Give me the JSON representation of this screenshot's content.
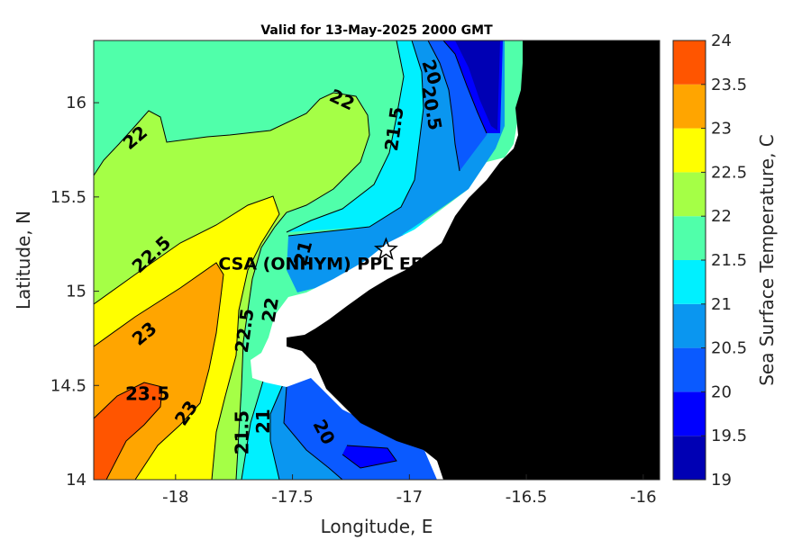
{
  "chart_data": {
    "type": "heatmap",
    "title": "Valid for 13-May-2025 2000 GMT",
    "xlabel": "Longitude, E",
    "ylabel": "Latitude, N",
    "xlim": [
      -18.35,
      -15.93
    ],
    "ylim": [
      14.0,
      16.33
    ],
    "x_ticks": [
      -18,
      -17.5,
      -17,
      -16.5,
      -16
    ],
    "x_tick_labels": [
      "-18",
      "-17.5",
      "-17",
      "-16.5",
      "-16"
    ],
    "y_ticks": [
      14,
      14.5,
      15,
      15.5,
      16
    ],
    "y_tick_labels": [
      "14",
      "14.5",
      "15",
      "15.5",
      "16"
    ],
    "colorbar": {
      "label": "Sea Surface Temperature, C",
      "levels": [
        19,
        19.5,
        20,
        20.5,
        21,
        21.5,
        22,
        22.5,
        23,
        23.5,
        24
      ],
      "tick_labels": [
        "19",
        "19.5",
        "20",
        "20.5",
        "21",
        "21.5",
        "22",
        "22.5",
        "23",
        "23.5",
        "24"
      ],
      "colors": [
        "#0000b4",
        "#0000ff",
        "#0a5aff",
        "#0a96f0",
        "#00f0ff",
        "#50ffaa",
        "#a5ff46",
        "#ffff00",
        "#ffa500",
        "#ff5500"
      ]
    },
    "contour_labels": [
      {
        "text": "22",
        "lon": -18.17,
        "lat": 15.81,
        "angle": -40
      },
      {
        "text": "22",
        "lon": -17.29,
        "lat": 16.01,
        "angle": 25
      },
      {
        "text": "21.5",
        "lon": -17.06,
        "lat": 15.86,
        "angle": -82
      },
      {
        "text": "20.5",
        "lon": -16.91,
        "lat": 15.97,
        "angle": 80
      },
      {
        "text": "20",
        "lon": -16.91,
        "lat": 16.16,
        "angle": 72
      },
      {
        "text": "22.5",
        "lon": -18.1,
        "lat": 15.19,
        "angle": -42
      },
      {
        "text": "21",
        "lon": -17.45,
        "lat": 15.2,
        "angle": -75
      },
      {
        "text": "23",
        "lon": -18.13,
        "lat": 14.77,
        "angle": -40
      },
      {
        "text": "22.5",
        "lon": -17.7,
        "lat": 14.79,
        "angle": -82
      },
      {
        "text": "22",
        "lon": -17.59,
        "lat": 14.9,
        "angle": -80
      },
      {
        "text": "23.5",
        "lon": -18.12,
        "lat": 14.45,
        "angle": 0
      },
      {
        "text": "23",
        "lon": -17.95,
        "lat": 14.35,
        "angle": -55
      },
      {
        "text": "21.5",
        "lon": -17.71,
        "lat": 14.25,
        "angle": -90
      },
      {
        "text": "21",
        "lon": -17.62,
        "lat": 14.31,
        "angle": -90
      },
      {
        "text": "20",
        "lon": -17.37,
        "lat": 14.25,
        "angle": 62
      }
    ],
    "station": {
      "name": "CSA (ONHYM) PPL EEZ",
      "lon": -17.1,
      "lat": 15.22,
      "marker": "star"
    },
    "land_color": "#000000",
    "no_data_color": "#ffffff"
  }
}
